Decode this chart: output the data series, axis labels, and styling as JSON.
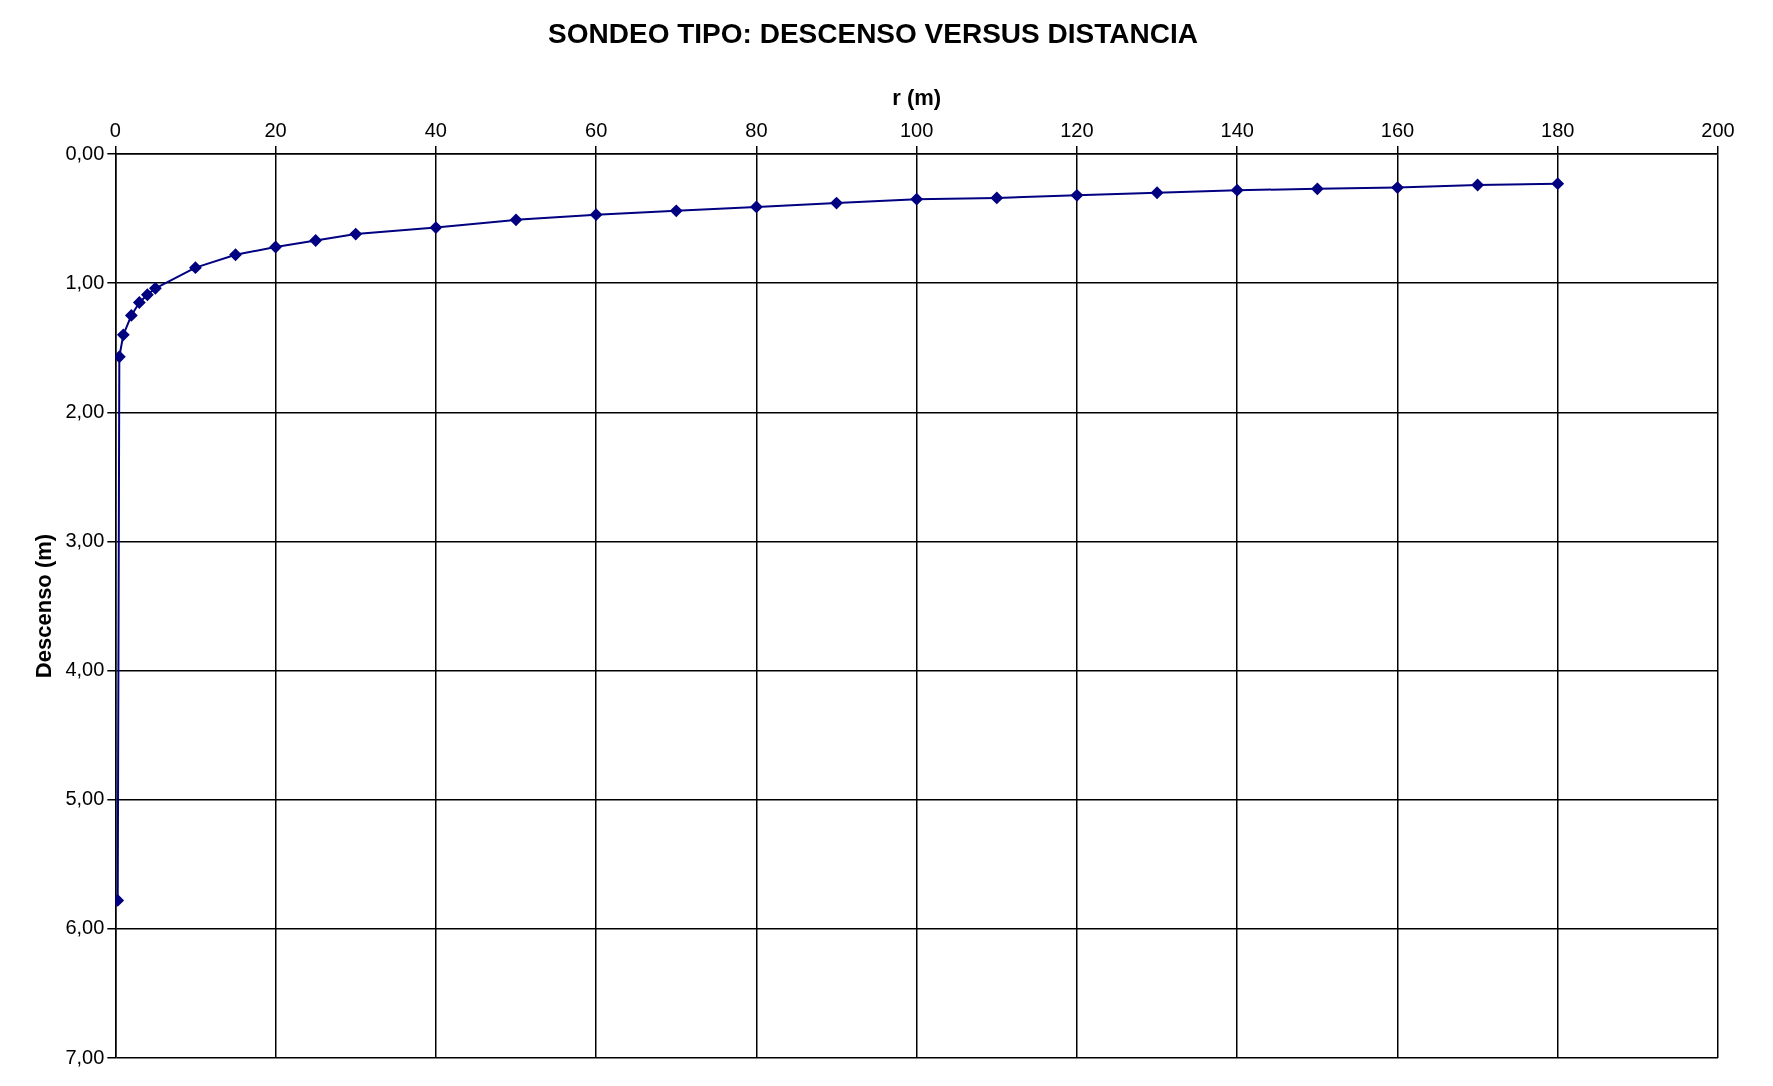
{
  "chart_data": {
    "type": "line",
    "title": "SONDEO TIPO: DESCENSO VERSUS DISTANCIA",
    "xlabel": "r (m)",
    "ylabel": "Descenso (m)",
    "series": [
      {
        "color": "#000080",
        "x": [
          0.3,
          0.5,
          1,
          2,
          3,
          4,
          5,
          10,
          15,
          20,
          25,
          30,
          40,
          50,
          60,
          70,
          80,
          90,
          100,
          110,
          120,
          130,
          140,
          150,
          160,
          170,
          180
        ],
        "values": [
          5.78,
          1.57,
          1.4,
          1.25,
          1.15,
          1.09,
          1.04,
          0.88,
          0.78,
          0.72,
          0.67,
          0.62,
          0.57,
          0.51,
          0.47,
          0.44,
          0.41,
          0.38,
          0.35,
          0.34,
          0.32,
          0.3,
          0.28,
          0.27,
          0.26,
          0.24,
          0.23
        ]
      }
    ],
    "xlim": [
      0,
      200
    ],
    "xticks": [
      0,
      20,
      40,
      60,
      80,
      100,
      120,
      140,
      160,
      180,
      200
    ],
    "ylim": [
      7,
      0
    ],
    "yticks": [
      {
        "value": 0,
        "label": "0,00"
      },
      {
        "value": 1,
        "label": "1,00"
      },
      {
        "value": 2,
        "label": "2,00"
      },
      {
        "value": 3,
        "label": "3,00"
      },
      {
        "value": 4,
        "label": "4,00"
      },
      {
        "value": 5,
        "label": "5,00"
      },
      {
        "value": 6,
        "label": "6,00"
      },
      {
        "value": 7,
        "label": "7,00"
      }
    ],
    "grid": true,
    "legend": false,
    "marker": "diamond",
    "line_style": "solid"
  }
}
